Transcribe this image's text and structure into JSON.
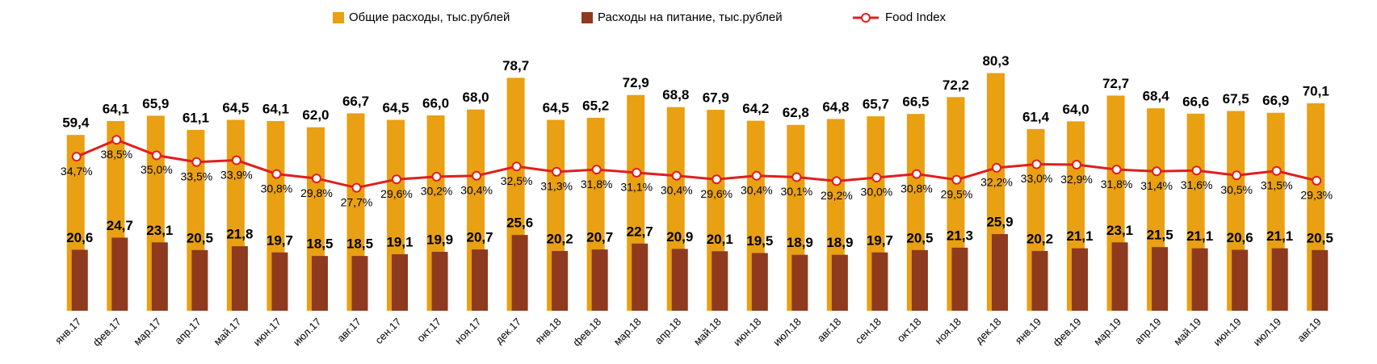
{
  "chart_data": {
    "type": "bar",
    "categories": [
      "янв.17",
      "фев.17",
      "мар.17",
      "апр.17",
      "май.17",
      "июн.17",
      "июл.17",
      "авг.17",
      "сен.17",
      "окт.17",
      "ноя.17",
      "дек.17",
      "янв.18",
      "фев.18",
      "мар.18",
      "апр.18",
      "май.18",
      "июн.18",
      "июл.18",
      "авг.18",
      "сен.18",
      "окт.18",
      "ноя.18",
      "дек.18",
      "янв.19",
      "фев.19",
      "мар.19",
      "апр.19",
      "май.19",
      "июн.19",
      "июл.19",
      "авг.19"
    ],
    "ylim": [
      0,
      90
    ],
    "y2lim": [
      0,
      60
    ],
    "series": [
      {
        "name": "Общие расходы, тыс.рублей",
        "type": "bar",
        "color": "#E9A012",
        "values": [
          59.4,
          64.1,
          65.9,
          61.1,
          64.5,
          64.1,
          62.0,
          66.7,
          64.5,
          66.0,
          68.0,
          78.7,
          64.5,
          65.2,
          72.9,
          68.8,
          67.9,
          64.2,
          62.8,
          64.8,
          65.7,
          66.5,
          72.2,
          80.3,
          61.4,
          64.0,
          72.7,
          68.4,
          66.6,
          67.5,
          66.9,
          70.1
        ],
        "value_labels": [
          "59,4",
          "64,1",
          "65,9",
          "61,1",
          "64,5",
          "64,1",
          "62,0",
          "66,7",
          "64,5",
          "66,0",
          "68,0",
          "78,7",
          "64,5",
          "65,2",
          "72,9",
          "68,8",
          "67,9",
          "64,2",
          "62,8",
          "64,8",
          "65,7",
          "66,5",
          "72,2",
          "80,3",
          "61,4",
          "64,0",
          "72,7",
          "68,4",
          "66,6",
          "67,5",
          "66,9",
          "70,1"
        ]
      },
      {
        "name": "Расходы на питание, тыс.рублей",
        "type": "bar",
        "color": "#8E3A1E",
        "values": [
          20.6,
          24.7,
          23.1,
          20.5,
          21.8,
          19.7,
          18.5,
          18.5,
          19.1,
          19.9,
          20.7,
          25.6,
          20.2,
          20.7,
          22.7,
          20.9,
          20.1,
          19.5,
          18.9,
          18.9,
          19.7,
          20.5,
          21.3,
          25.9,
          20.2,
          21.1,
          23.1,
          21.5,
          21.1,
          20.6,
          21.1,
          20.5
        ],
        "value_labels": [
          "20,6",
          "24,7",
          "23,1",
          "20,5",
          "21,8",
          "19,7",
          "18,5",
          "18,5",
          "19,1",
          "19,9",
          "20,7",
          "25,6",
          "20,2",
          "20,7",
          "22,7",
          "20,9",
          "20,1",
          "19,5",
          "18,9",
          "18,9",
          "19,7",
          "20,5",
          "21,3",
          "25,9",
          "20,2",
          "21,1",
          "23,1",
          "21,5",
          "21,1",
          "20,6",
          "21,1",
          "20,5"
        ]
      },
      {
        "name": "Food Index",
        "type": "line",
        "axis": "y2",
        "color": "#E01E1E",
        "values": [
          34.7,
          38.5,
          35.0,
          33.5,
          33.9,
          30.8,
          29.8,
          27.7,
          29.6,
          30.2,
          30.4,
          32.5,
          31.3,
          31.8,
          31.1,
          30.4,
          29.6,
          30.4,
          30.1,
          29.2,
          30.0,
          30.8,
          29.5,
          32.2,
          33.0,
          32.9,
          31.8,
          31.4,
          31.6,
          30.5,
          31.5,
          29.3
        ],
        "value_labels": [
          "34,7%",
          "38,5%",
          "35,0%",
          "33,5%",
          "33,9%",
          "30,8%",
          "29,8%",
          "27,7%",
          "29,6%",
          "30,2%",
          "30,4%",
          "32,5%",
          "31,3%",
          "31,8%",
          "31,1%",
          "30,4%",
          "29,6%",
          "30,4%",
          "30,1%",
          "29,2%",
          "30,0%",
          "30,8%",
          "29,5%",
          "32,2%",
          "33,0%",
          "32,9%",
          "31,8%",
          "31,4%",
          "31,6%",
          "30,5%",
          "31,5%",
          "29,3%"
        ]
      }
    ]
  }
}
